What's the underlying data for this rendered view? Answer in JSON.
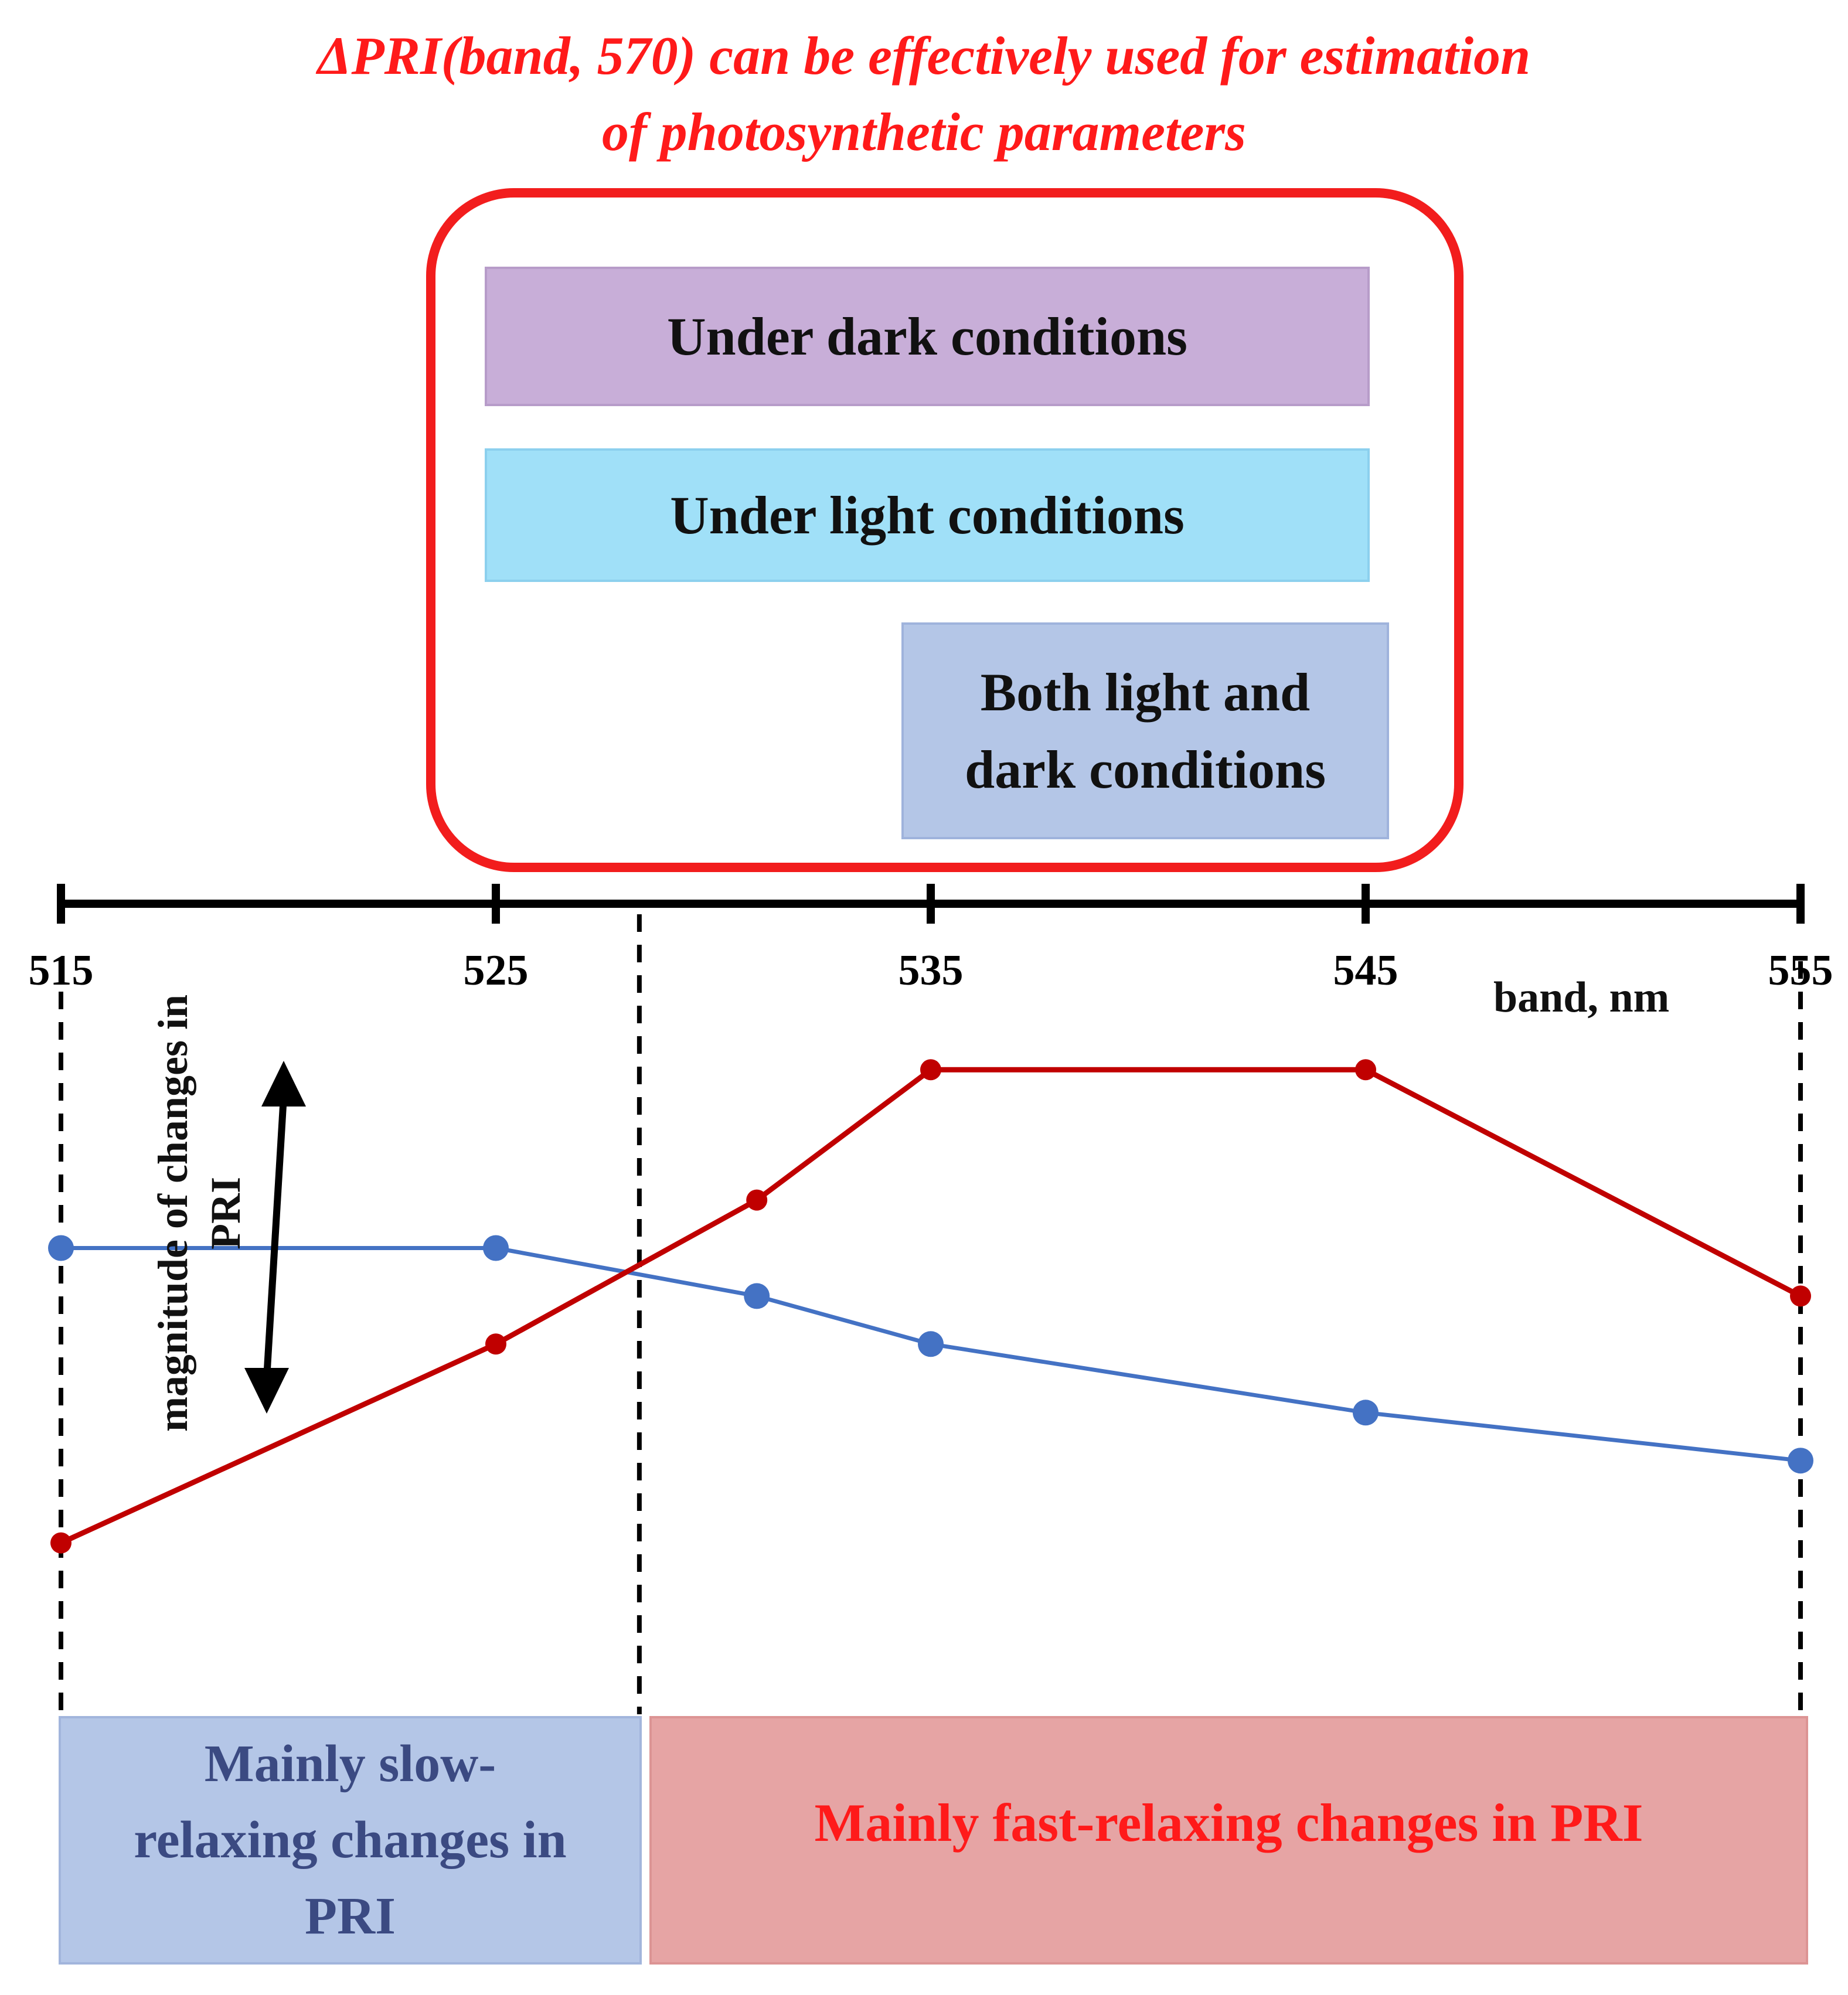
{
  "title": {
    "line1": "ΔPRI(band, 570) can be effectively used for estimation",
    "line2": "of photosynthetic parameters"
  },
  "conditions": {
    "dark": "Under dark conditions",
    "light": "Under light conditions",
    "both_line1": "Both light and",
    "both_line2": "dark conditions"
  },
  "axis": {
    "ticks": [
      "515",
      "525",
      "535",
      "545",
      "555"
    ],
    "label": "band, nm"
  },
  "y_annotation": {
    "line1": "magnitude of changes in",
    "line2": "PRI"
  },
  "regions": {
    "slow_line1": "Mainly slow-",
    "slow_line2": "relaxing changes in",
    "slow_line3": "PRI",
    "fast": "Mainly fast-relaxing changes in PRI"
  },
  "colors": {
    "title": "#ff1a1a",
    "frame": "#f21d1d",
    "dark_box": "#c8aed8",
    "light_box": "#a0e0f8",
    "both_box": "#b4c6e7",
    "slow_region": "#b4c6e7",
    "slow_text": "#3b4a82",
    "fast_region": "#e6a4a4",
    "fast_text": "#ff1a1a",
    "blue_series": "#4472c4",
    "red_series": "#c00000"
  },
  "chart_data": {
    "type": "line",
    "x": [
      515,
      525,
      531,
      535,
      545,
      555
    ],
    "series": [
      {
        "name": "blue",
        "x": [
          515,
          525,
          531,
          535,
          545,
          555
        ],
        "values": [
          0.65,
          0.65,
          0.58,
          0.51,
          0.41,
          0.34
        ]
      },
      {
        "name": "red",
        "x": [
          515,
          525,
          531,
          535,
          545,
          555
        ],
        "values": [
          0.22,
          0.51,
          0.72,
          0.91,
          0.91,
          0.58
        ]
      }
    ],
    "xlabel": "band, nm",
    "ylabel": "magnitude of changes in PRI",
    "xlim": [
      515,
      555
    ],
    "ylim": [
      0,
      1
    ],
    "boundary_x": 528.3
  }
}
